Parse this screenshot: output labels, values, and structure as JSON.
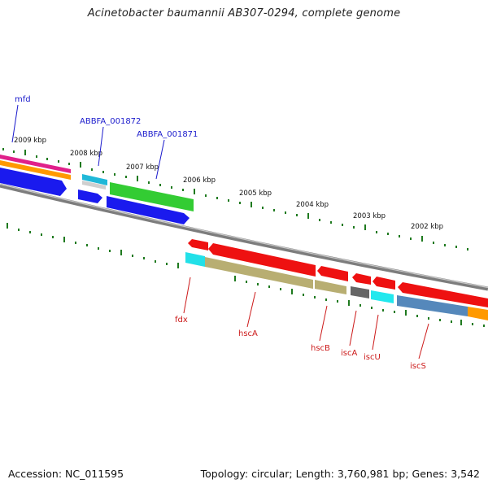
{
  "title": "Acinetobacter baumannii AB307-0294, complete genome",
  "footer": {
    "accession": "Accession: NC_011595",
    "summary": "Topology: circular; Length: 3,760,981 bp; Genes: 3,542"
  },
  "ruler": {
    "labels": [
      "2009 kbp",
      "2008 kbp",
      "2007 kbp",
      "2006 kbp",
      "2005 kbp",
      "2004 kbp",
      "2003 kbp",
      "2002 kbp"
    ]
  },
  "genes_top": [
    {
      "name": "mfd"
    },
    {
      "name": "ABBFA_001872"
    },
    {
      "name": "ABBFA_001871"
    }
  ],
  "genes_bottom": [
    {
      "name": "fdx"
    },
    {
      "name": "hscA"
    },
    {
      "name": "hscB"
    },
    {
      "name": "iscA"
    },
    {
      "name": "iscU"
    },
    {
      "name": "iscS"
    }
  ],
  "colors": {
    "backbone": "#8a8a8a",
    "tick": "#1f7a1f",
    "blue_label": "#1a1acc",
    "red_label": "#cc1a1a"
  }
}
